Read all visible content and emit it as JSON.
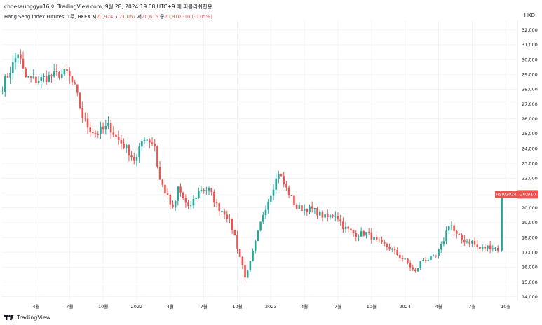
{
  "header": {
    "text": "choeseunggyu16 이 TradingView.com, 9월 28, 2024 19:08 UTC+9 에 퍼블리쉬한용"
  },
  "legend": {
    "symbol": "Hang Seng Index Futures, 1주, HKEX",
    "open_label": "시",
    "open": "20,924",
    "high_label": "고",
    "high": "21,067",
    "low_label": "저",
    "low": "20,616",
    "close_label": "종",
    "close": "20,910",
    "change": "-10 (-0.05%)"
  },
  "currency": "HKD",
  "price_tag": {
    "symbol": "HSIV2024",
    "price": "20,910"
  },
  "footer": {
    "brand": "TradingView",
    "logo": "tradingview-logo"
  },
  "colors": {
    "up": "#26a69a",
    "down": "#ef5350",
    "grid": "#f0f3fa"
  },
  "chart_data": {
    "type": "candlestick",
    "ylim": [
      13700,
      32600
    ],
    "y_ticks": [
      "14,000",
      "15,000",
      "16,000",
      "17,000",
      "18,000",
      "19,000",
      "20,000",
      "21,000",
      "22,000",
      "23,000",
      "24,000",
      "25,000",
      "26,000",
      "27,000",
      "28,000",
      "29,000",
      "30,000",
      "31,000",
      "32,000"
    ],
    "x_ticks": [
      "4월",
      "7월",
      "10월",
      "2022",
      "4월",
      "7월",
      "10월",
      "2023",
      "4월",
      "7월",
      "10월",
      "2024",
      "4월",
      "7월",
      "10월"
    ],
    "x_tick_months": [
      3,
      6,
      9,
      12,
      15,
      18,
      21,
      24,
      27,
      30,
      33,
      36,
      39,
      42,
      45
    ],
    "grid": true,
    "anchors": [
      [
        0.0,
        28200,
        0.12
      ],
      [
        1.0,
        29800,
        0.1
      ],
      [
        1.4,
        30500,
        0.1
      ],
      [
        2.0,
        28800,
        0.1
      ],
      [
        3.0,
        28600,
        0.1
      ],
      [
        4.5,
        28900,
        0.1
      ],
      [
        5.8,
        29100,
        0.1
      ],
      [
        6.5,
        28000,
        0.1
      ],
      [
        7.3,
        25800,
        0.15
      ],
      [
        8.3,
        25000,
        0.12
      ],
      [
        9.6,
        25500,
        0.12
      ],
      [
        10.2,
        24700,
        0.12
      ],
      [
        11.0,
        24100,
        0.1
      ],
      [
        11.9,
        23100,
        0.1
      ],
      [
        12.6,
        24800,
        0.1
      ],
      [
        13.6,
        24300,
        0.1
      ],
      [
        14.0,
        22000,
        0.15
      ],
      [
        14.6,
        21000,
        0.1
      ],
      [
        15.3,
        19700,
        0.12
      ],
      [
        15.7,
        21400,
        0.1
      ],
      [
        16.6,
        19900,
        0.1
      ],
      [
        17.7,
        21300,
        0.1
      ],
      [
        18.5,
        21200,
        0.1
      ],
      [
        19.2,
        20100,
        0.1
      ],
      [
        20.0,
        19600,
        0.1
      ],
      [
        20.7,
        18300,
        0.1
      ],
      [
        21.3,
        16500,
        0.15
      ],
      [
        21.8,
        15200,
        0.15
      ],
      [
        22.5,
        17200,
        0.15
      ],
      [
        23.3,
        19600,
        0.1
      ],
      [
        24.1,
        21200,
        0.1
      ],
      [
        24.7,
        22400,
        0.1
      ],
      [
        25.3,
        21400,
        0.1
      ],
      [
        26.3,
        20000,
        0.1
      ],
      [
        27.7,
        19900,
        0.1
      ],
      [
        29.0,
        19300,
        0.1
      ],
      [
        29.8,
        19600,
        0.1
      ],
      [
        30.5,
        18700,
        0.1
      ],
      [
        31.6,
        18200,
        0.1
      ],
      [
        32.6,
        18300,
        0.1
      ],
      [
        33.5,
        17700,
        0.1
      ],
      [
        34.6,
        17300,
        0.1
      ],
      [
        36.2,
        16300,
        0.1
      ],
      [
        36.9,
        15600,
        0.1
      ],
      [
        37.5,
        16500,
        0.1
      ],
      [
        38.7,
        16600,
        0.1
      ],
      [
        39.3,
        17500,
        0.1
      ],
      [
        40.0,
        19100,
        0.1
      ],
      [
        40.5,
        18200,
        0.1
      ],
      [
        41.2,
        17800,
        0.1
      ],
      [
        42.0,
        17700,
        0.1
      ],
      [
        42.6,
        17200,
        0.1
      ],
      [
        43.6,
        17400,
        0.1
      ],
      [
        44.4,
        17200,
        0.1
      ],
      [
        44.7,
        20910,
        0.0
      ]
    ],
    "last_candle": {
      "open": "20,924",
      "high": "21,067",
      "low": "20,616",
      "close": "20,910"
    }
  }
}
